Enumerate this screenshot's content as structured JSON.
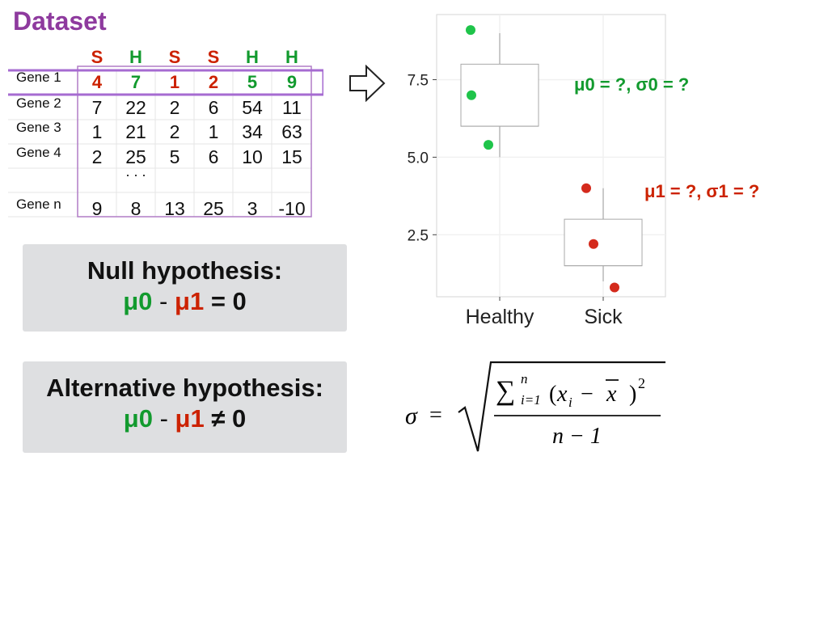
{
  "title": "Dataset",
  "table": {
    "headers": [
      {
        "label": "S",
        "color": "#cc2200"
      },
      {
        "label": "H",
        "color": "#129a2e"
      },
      {
        "label": "S",
        "color": "#cc2200"
      },
      {
        "label": "S",
        "color": "#cc2200"
      },
      {
        "label": "H",
        "color": "#129a2e"
      },
      {
        "label": "H",
        "color": "#129a2e"
      }
    ],
    "rows": [
      {
        "label": "Gene 1",
        "values": [
          "4",
          "7",
          "1",
          "2",
          "5",
          "9"
        ],
        "highlight": true
      },
      {
        "label": "Gene 2",
        "values": [
          "7",
          "22",
          "2",
          "6",
          "54",
          "11"
        ]
      },
      {
        "label": "Gene 3",
        "values": [
          "1",
          "21",
          "2",
          "1",
          "34",
          "63"
        ]
      },
      {
        "label": "Gene 4",
        "values": [
          "2",
          "25",
          "5",
          "6",
          "10",
          "15"
        ]
      },
      {
        "label": "",
        "values": [
          "",
          ". . .",
          "",
          "",
          "",
          ""
        ]
      },
      {
        "label": "Gene n",
        "values": [
          "9",
          "8",
          "13",
          "25",
          "3",
          "-10"
        ]
      }
    ]
  },
  "null_hypothesis": {
    "heading": "Null hypothesis:",
    "mu0": "μ0",
    "minus": "-",
    "mu1": "μ1",
    "rhs": "= 0"
  },
  "alt_hypothesis": {
    "heading": "Alternative hypothesis:",
    "mu0": "μ0",
    "minus": "-",
    "mu1": "μ1",
    "rhs": "≠ 0"
  },
  "annotations": {
    "healthy": "μ0 = ?, σ0 = ?",
    "sick": "μ1 = ?, σ1 = ?"
  },
  "formula": {
    "sigma": "σ",
    "equals": "=",
    "sum": "∑",
    "sup": "n",
    "sub": "i=1",
    "term_open": "(",
    "xi": "x",
    "xi_sub": "i",
    "minus": "−",
    "xbar": "x",
    "term_close": ")",
    "power": "2",
    "denominator": "n − 1"
  },
  "colors": {
    "healthy": "#1fc44a",
    "sick": "#d42a1c",
    "purple": "#8e3a9e",
    "box": "#cfcfcf",
    "grid": "#f0f0f0"
  },
  "chart_data": {
    "type": "box",
    "categories": [
      "Healthy",
      "Sick"
    ],
    "series": [
      {
        "category": "Healthy",
        "points": [
          9.1,
          7.0,
          5.4
        ],
        "q1": 6.0,
        "median": 6.0,
        "q3": 8.0,
        "whisker_low": 5.0,
        "whisker_high": 9.0
      },
      {
        "category": "Sick",
        "points": [
          4.0,
          2.2,
          0.8
        ],
        "q1": 1.5,
        "median": 1.5,
        "q3": 3.0,
        "whisker_low": 1.0,
        "whisker_high": 4.0
      }
    ],
    "yticks": [
      "2.5",
      "5.0",
      "7.5"
    ],
    "ytick_values": [
      2.5,
      5.0,
      7.5
    ],
    "ylim": [
      0.5,
      9.6
    ],
    "grid": true
  }
}
